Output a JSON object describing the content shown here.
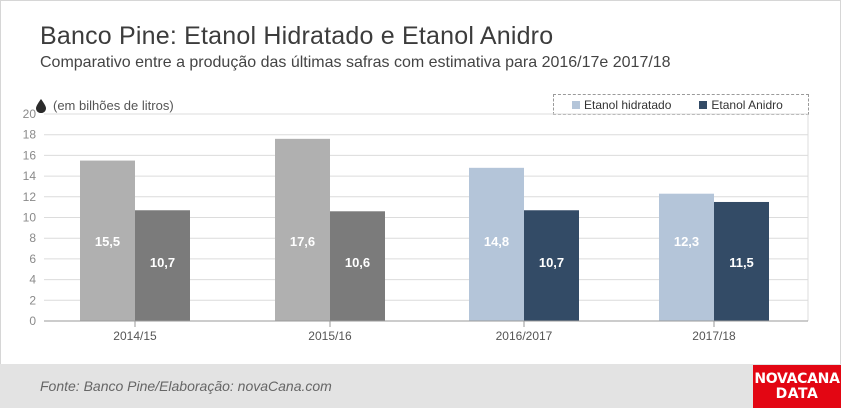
{
  "header": {
    "title": "Banco Pine: Etanol Hidratado e Etanol Anidro",
    "subtitle": "Comparativo entre a produção das últimas safras com estimativa para 2016/17e 2017/18",
    "unit_label": "(em bilhões de litros)",
    "unit_icon": "drop-icon"
  },
  "legend": {
    "items": [
      {
        "label": "Etanol hidratado",
        "color": "#b4c5d9"
      },
      {
        "label": "Etanol Anidro",
        "color": "#334b66"
      }
    ],
    "placement": "top-right"
  },
  "chart_data": {
    "type": "bar",
    "title": "Banco Pine: Etanol Hidratado e Etanol Anidro",
    "subtitle": "Comparativo entre a produção das últimas safras com estimativa para 2016/17e 2017/18",
    "ylabel": "(em bilhões de litros)",
    "xlabel": "",
    "categories": [
      "2014/15",
      "2015/16",
      "2016/2017",
      "2017/18"
    ],
    "series": [
      {
        "name": "Etanol hidratado",
        "values": [
          15.5,
          17.6,
          14.8,
          12.3
        ],
        "labels": [
          "15,5",
          "17,6",
          "14,8",
          "12,3"
        ]
      },
      {
        "name": "Etanol Anidro",
        "values": [
          10.7,
          10.6,
          10.7,
          11.5
        ],
        "labels": [
          "10,7",
          "10,6",
          "10,7",
          "11,5"
        ]
      }
    ],
    "bar_colors": [
      [
        "#b0b0b0",
        "#7b7b7b"
      ],
      [
        "#b0b0b0",
        "#7b7b7b"
      ],
      [
        "#b4c5d9",
        "#334b66"
      ],
      [
        "#b4c5d9",
        "#334b66"
      ]
    ],
    "ylim": [
      0,
      20
    ],
    "yticks": [
      0,
      2,
      4,
      6,
      8,
      10,
      12,
      14,
      16,
      18,
      20
    ],
    "grid": true,
    "legend": "top-right"
  },
  "footer": {
    "source": "Fonte: Banco Pine/Elaboração: novaCana.com",
    "logo_line1": "NOVACANA",
    "logo_line2": "DATA"
  }
}
